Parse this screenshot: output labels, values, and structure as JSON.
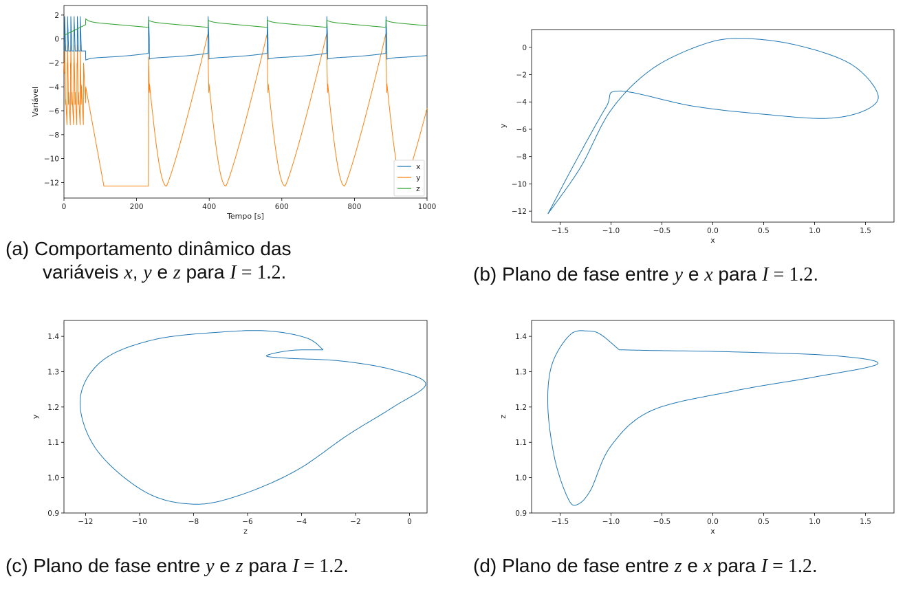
{
  "colors": {
    "x": "#1f77b4",
    "y": "#ff7f0e",
    "z": "#2ca02c",
    "axis": "#000000"
  },
  "chart_data": [
    {
      "id": "a",
      "type": "line",
      "xlabel": "Tempo [s]",
      "ylabel": "Variável",
      "xlim": [
        0,
        1000
      ],
      "ylim": [
        -13.3,
        2.8
      ],
      "xticks": [
        0,
        200,
        400,
        600,
        800,
        1000
      ],
      "yticks": [
        2,
        0,
        -2,
        -4,
        -6,
        -8,
        -10,
        -12
      ],
      "grid": false,
      "legend_position": "lower right",
      "spike_times": [
        233,
        397,
        560,
        724,
        887
      ],
      "series": [
        {
          "name": "x",
          "color": "#1f77b4",
          "baseline": -1.6,
          "peak": 1.9
        },
        {
          "name": "y",
          "color": "#ff7f0e",
          "minimum": -12.3,
          "peak": 0.5
        },
        {
          "name": "z",
          "color": "#2ca02c",
          "min": 0.9,
          "max": 1.4
        }
      ],
      "caption": {
        "label": "(a)",
        "line1": "Comportamento dinâmico das",
        "line2_pre": "variáveis ",
        "v1": "x",
        "sep1": ", ",
        "v2": "y",
        "sep2": " e ",
        "v3": "z",
        "mid": " para ",
        "param": "I",
        "eq": " = 1.2",
        "end": "."
      }
    },
    {
      "id": "b",
      "type": "line",
      "xlabel": "x",
      "ylabel": "y",
      "xlim": [
        -1.78,
        1.78
      ],
      "ylim": [
        -12.8,
        1.3
      ],
      "xticks": [
        -1.5,
        -1.0,
        -0.5,
        0.0,
        0.5,
        1.0,
        1.5
      ],
      "yticks": [
        0,
        -2,
        -4,
        -6,
        -8,
        -10,
        -12
      ],
      "grid": false,
      "series": [
        {
          "name": "",
          "color": "#1f77b4"
        }
      ],
      "caption": {
        "label": "(b)",
        "pre": " Plano de fase entre ",
        "v1": "y",
        "sep": " e ",
        "v2": "x",
        "mid": " para ",
        "param": "I",
        "eq": " = 1.2",
        "end": "."
      }
    },
    {
      "id": "c",
      "type": "line",
      "xlabel": "z",
      "ylabel": "y",
      "xlim": [
        -12.8,
        0.65
      ],
      "ylim": [
        0.9,
        1.445
      ],
      "xticks": [
        -12,
        -10,
        -8,
        -6,
        -4,
        -2,
        0
      ],
      "yticks": [
        1.4,
        1.3,
        1.2,
        1.1,
        1.0,
        0.9
      ],
      "grid": false,
      "series": [
        {
          "name": "",
          "color": "#1f77b4"
        }
      ],
      "caption": {
        "label": "(c)",
        "pre": " Plano de fase entre ",
        "v1": "y",
        "sep": " e ",
        "v2": "z",
        "mid": " para ",
        "param": "I",
        "eq": " = 1.2",
        "end": "."
      }
    },
    {
      "id": "d",
      "type": "line",
      "xlabel": "x",
      "ylabel": "z",
      "xlim": [
        -1.78,
        1.78
      ],
      "ylim": [
        0.9,
        1.445
      ],
      "xticks": [
        -1.5,
        -1.0,
        -0.5,
        0.0,
        0.5,
        1.0,
        1.5
      ],
      "yticks": [
        1.4,
        1.3,
        1.2,
        1.1,
        1.0,
        0.9
      ],
      "grid": false,
      "series": [
        {
          "name": "",
          "color": "#1f77b4"
        }
      ],
      "caption": {
        "label": "(d)",
        "pre": " Plano de fase entre ",
        "v1": "z",
        "sep": " e ",
        "v2": "x",
        "mid": " para ",
        "param": "I",
        "eq": " = 1.2",
        "end": "."
      }
    }
  ]
}
